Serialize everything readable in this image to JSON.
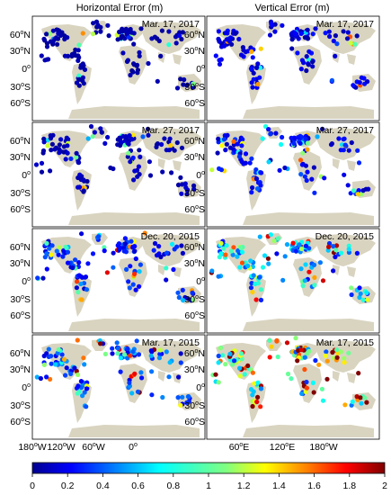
{
  "figure": {
    "columns": [
      {
        "title": "Horizontal Error (m)"
      },
      {
        "title": "Vertical Error (m)"
      }
    ],
    "rows": [
      {
        "date": "Mar. 17, 2017"
      },
      {
        "date": "Mar. 27, 2017"
      },
      {
        "date": "Dec. 20, 2015"
      },
      {
        "date": "Mar. 17, 2015"
      }
    ],
    "lat_ticks": [
      {
        "num": "60",
        "hemi": "N"
      },
      {
        "num": "30",
        "hemi": "N"
      },
      {
        "num": "0",
        "hemi": ""
      },
      {
        "num": "30",
        "hemi": "S"
      },
      {
        "num": "60",
        "hemi": "S"
      }
    ],
    "lon_ticks_left": [
      {
        "num": "180",
        "hemi": "W"
      },
      {
        "num": "120",
        "hemi": "W"
      },
      {
        "num": "60",
        "hemi": "W"
      },
      {
        "num": "0",
        "hemi": ""
      }
    ],
    "lon_ticks_right": [
      {
        "num": "60",
        "hemi": "E"
      },
      {
        "num": "120",
        "hemi": "E"
      },
      {
        "num": "180",
        "hemi": "W"
      }
    ],
    "colorbar": {
      "ticks": [
        "0",
        "0.2",
        "0.4",
        "0.6",
        "0.8",
        "1",
        "1.2",
        "1.4",
        "1.6",
        "1.8",
        "2"
      ],
      "min": 0,
      "max": 2,
      "colormap": [
        "#00008f",
        "#0000ff",
        "#0080ff",
        "#00ffff",
        "#80ff80",
        "#ffff00",
        "#ff8000",
        "#ff0000",
        "#800000"
      ]
    },
    "land_color": "#d9d4c0",
    "panel_error_levels": [
      [
        0.05,
        0.15
      ],
      [
        0.08,
        0.2
      ],
      [
        0.25,
        0.55
      ],
      [
        0.35,
        0.8
      ]
    ]
  }
}
